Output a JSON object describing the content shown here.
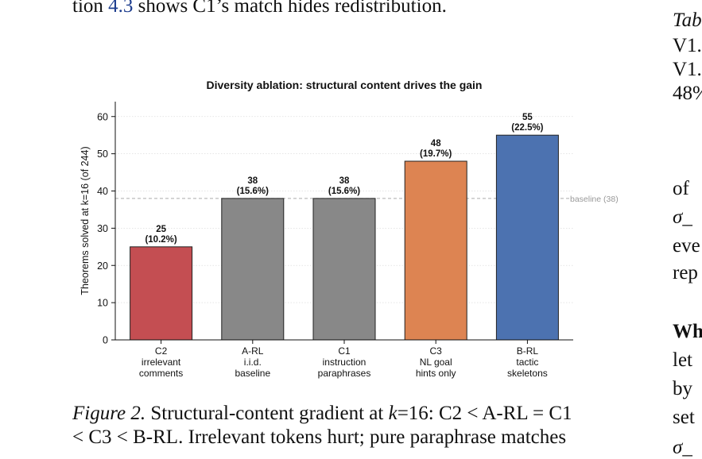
{
  "body": {
    "top_prefix": "tion",
    "top_ref": "4.3",
    "top_suffix": "shows C1’s match hides redistribution."
  },
  "chart_data": {
    "type": "bar",
    "title": "Diversity ablation: structural content drives the gain",
    "ylabel": "Theorems solved at k=16 (of 244)",
    "xlabel": "",
    "ylim": [
      0,
      64
    ],
    "yticks": [
      0,
      10,
      20,
      30,
      40,
      50,
      60
    ],
    "grid": "horizontal dotted",
    "categories": [
      [
        "C2",
        "irrelevant",
        "comments"
      ],
      [
        "A-RL",
        "i.i.d.",
        "baseline"
      ],
      [
        "C1",
        "instruction",
        "paraphrases"
      ],
      [
        "C3",
        "NL goal",
        "hints only"
      ],
      [
        "B-RL",
        "tactic",
        "skeletons"
      ]
    ],
    "values": [
      25,
      38,
      38,
      48,
      55
    ],
    "value_labels": [
      "25",
      "38",
      "38",
      "48",
      "55"
    ],
    "percent_labels": [
      "(10.2%)",
      "(15.6%)",
      "(15.6%)",
      "(19.7%)",
      "(22.5%)"
    ],
    "colors": [
      "#c44e52",
      "#888888",
      "#888888",
      "#dd8452",
      "#4c72b0"
    ],
    "baseline": {
      "value": 38,
      "label": "baseline (38)",
      "color": "#aaaaaa"
    }
  },
  "caption": {
    "label": "Figure 2.",
    "line1": "Structural-content gradient at",
    "k_symbol": "k",
    "eq_tail": "=16: C2 < A-RL = C1",
    "line2": "< C3 < B-RL. Irrelevant tokens hurt; pure paraphrase matches"
  },
  "right_column": {
    "r1": "Tab",
    "r2": "V1.",
    "r3": "V1.",
    "r4": "48%",
    "r5": "of",
    "r6": "σ_",
    "r7": "eve",
    "r8": "rep",
    "r9": "Wh",
    "r10": "let",
    "r11": "by",
    "r12": "set",
    "r13": "σ_"
  }
}
